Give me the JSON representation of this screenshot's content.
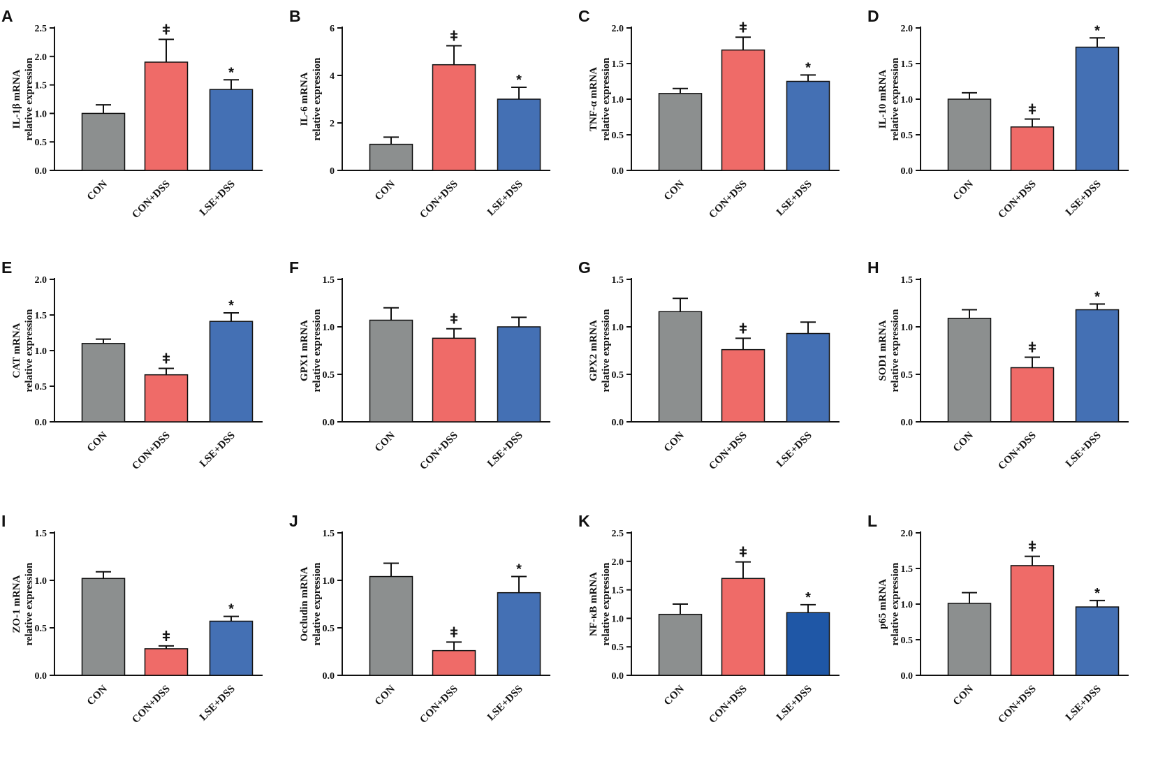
{
  "figure": {
    "sig_markers": {
      "model_vs_control": "ǂ",
      "treatment_vs_model": "*"
    },
    "colors": {
      "CON": "#8c8f8f",
      "CON+DSS": "#ef6b68",
      "LSE+DSS": "#4470b4",
      "LSE+DSS_panel_K": "#1f57a6"
    }
  },
  "chart_data": [
    {
      "type": "bar",
      "panel": "A",
      "ylabel": [
        "IL-1β mRNA",
        "relative expression"
      ],
      "categories": [
        "CON",
        "CON+DSS",
        "LSE+DSS"
      ],
      "values": [
        1.0,
        1.9,
        1.42
      ],
      "errors": [
        0.15,
        0.4,
        0.17
      ],
      "sig": [
        "",
        "ǂ",
        "*"
      ],
      "ylim": [
        0,
        2.5
      ],
      "yticks": [
        "0.0",
        "0.5",
        "1.0",
        "1.5",
        "2.0",
        "2.5"
      ]
    },
    {
      "type": "bar",
      "panel": "B",
      "ylabel": [
        "IL-6 mRNA",
        "relative expression"
      ],
      "categories": [
        "CON",
        "CON+DSS",
        "LSE+DSS"
      ],
      "values": [
        1.1,
        4.45,
        3.0
      ],
      "errors": [
        0.3,
        0.8,
        0.5
      ],
      "sig": [
        "",
        "ǂ",
        "*"
      ],
      "ylim": [
        0,
        6
      ],
      "yticks": [
        "0",
        "2",
        "4",
        "6"
      ]
    },
    {
      "type": "bar",
      "panel": "C",
      "ylabel": [
        "TNF-α mRNA",
        "relative expression"
      ],
      "categories": [
        "CON",
        "CON+DSS",
        "LSE+DSS"
      ],
      "values": [
        1.08,
        1.69,
        1.25
      ],
      "errors": [
        0.07,
        0.18,
        0.09
      ],
      "sig": [
        "",
        "ǂ",
        "*"
      ],
      "ylim": [
        0,
        2.0
      ],
      "yticks": [
        "0.0",
        "0.5",
        "1.0",
        "1.5",
        "2.0"
      ]
    },
    {
      "type": "bar",
      "panel": "D",
      "ylabel": [
        "IL-10 mRNA",
        "relative expression"
      ],
      "categories": [
        "CON",
        "CON+DSS",
        "LSE+DSS"
      ],
      "values": [
        1.0,
        0.61,
        1.73
      ],
      "errors": [
        0.09,
        0.11,
        0.13
      ],
      "sig": [
        "",
        "ǂ",
        "*"
      ],
      "ylim": [
        0,
        2.0
      ],
      "yticks": [
        "0.0",
        "0.5",
        "1.0",
        "1.5",
        "2.0"
      ]
    },
    {
      "type": "bar",
      "panel": "E",
      "ylabel": [
        "CAT mRNA",
        "relative expression"
      ],
      "categories": [
        "CON",
        "CON+DSS",
        "LSE+DSS"
      ],
      "values": [
        1.1,
        0.66,
        1.41
      ],
      "errors": [
        0.06,
        0.09,
        0.12
      ],
      "sig": [
        "",
        "ǂ",
        "*"
      ],
      "ylim": [
        0,
        2.0
      ],
      "yticks": [
        "0.0",
        "0.5",
        "1.0",
        "1.5",
        "2.0"
      ]
    },
    {
      "type": "bar",
      "panel": "F",
      "ylabel": [
        "GPX1 mRNA",
        "relative expression"
      ],
      "categories": [
        "CON",
        "CON+DSS",
        "LSE+DSS"
      ],
      "values": [
        1.07,
        0.88,
        1.0
      ],
      "errors": [
        0.13,
        0.1,
        0.1
      ],
      "sig": [
        "",
        "ǂ",
        ""
      ],
      "ylim": [
        0,
        1.5
      ],
      "yticks": [
        "0.0",
        "0.5",
        "1.0",
        "1.5"
      ]
    },
    {
      "type": "bar",
      "panel": "G",
      "ylabel": [
        "GPX2 mRNA",
        "relative expression"
      ],
      "categories": [
        "CON",
        "CON+DSS",
        "LSE+DSS"
      ],
      "values": [
        1.16,
        0.76,
        0.93
      ],
      "errors": [
        0.14,
        0.12,
        0.12
      ],
      "sig": [
        "",
        "ǂ",
        ""
      ],
      "ylim": [
        0,
        1.5
      ],
      "yticks": [
        "0.0",
        "0.5",
        "1.0",
        "1.5"
      ]
    },
    {
      "type": "bar",
      "panel": "H",
      "ylabel": [
        "SOD1 mRNA",
        "relative expression"
      ],
      "categories": [
        "CON",
        "CON+DSS",
        "LSE+DSS"
      ],
      "values": [
        1.09,
        0.57,
        1.18
      ],
      "errors": [
        0.09,
        0.11,
        0.06
      ],
      "sig": [
        "",
        "ǂ",
        "*"
      ],
      "ylim": [
        0,
        1.5
      ],
      "yticks": [
        "0.0",
        "0.5",
        "1.0",
        "1.5"
      ]
    },
    {
      "type": "bar",
      "panel": "I",
      "ylabel": [
        "ZO-1 mRNA",
        "relative expression"
      ],
      "categories": [
        "CON",
        "CON+DSS",
        "LSE+DSS"
      ],
      "values": [
        1.02,
        0.28,
        0.57
      ],
      "errors": [
        0.07,
        0.03,
        0.05
      ],
      "sig": [
        "",
        "ǂ",
        "*"
      ],
      "ylim": [
        0,
        1.5
      ],
      "yticks": [
        "0.0",
        "0.5",
        "1.0",
        "1.5"
      ]
    },
    {
      "type": "bar",
      "panel": "J",
      "ylabel": [
        "Occludin mRNA",
        "relative expression"
      ],
      "categories": [
        "CON",
        "CON+DSS",
        "LSE+DSS"
      ],
      "values": [
        1.04,
        0.26,
        0.87
      ],
      "errors": [
        0.14,
        0.09,
        0.17
      ],
      "sig": [
        "",
        "ǂ",
        "*"
      ],
      "ylim": [
        0,
        1.5
      ],
      "yticks": [
        "0.0",
        "0.5",
        "1.0",
        "1.5"
      ]
    },
    {
      "type": "bar",
      "panel": "K",
      "ylabel": [
        "NF-κB mRNA",
        "relative expression"
      ],
      "categories": [
        "CON",
        "CON+DSS",
        "LSE+DSS"
      ],
      "values": [
        1.07,
        1.7,
        1.1
      ],
      "errors": [
        0.18,
        0.29,
        0.14
      ],
      "sig": [
        "",
        "ǂ",
        "*"
      ],
      "ylim": [
        0,
        2.5
      ],
      "yticks": [
        "0.0",
        "0.5",
        "1.0",
        "1.5",
        "2.0",
        "2.5"
      ]
    },
    {
      "type": "bar",
      "panel": "L",
      "ylabel": [
        "p65 mRNA",
        "relative expression"
      ],
      "categories": [
        "CON",
        "CON+DSS",
        "LSE+DSS"
      ],
      "values": [
        1.01,
        1.54,
        0.96
      ],
      "errors": [
        0.15,
        0.13,
        0.09
      ],
      "sig": [
        "",
        "ǂ",
        "*"
      ],
      "ylim": [
        0,
        2.0
      ],
      "yticks": [
        "0.0",
        "0.5",
        "1.0",
        "1.5",
        "2.0"
      ]
    }
  ]
}
